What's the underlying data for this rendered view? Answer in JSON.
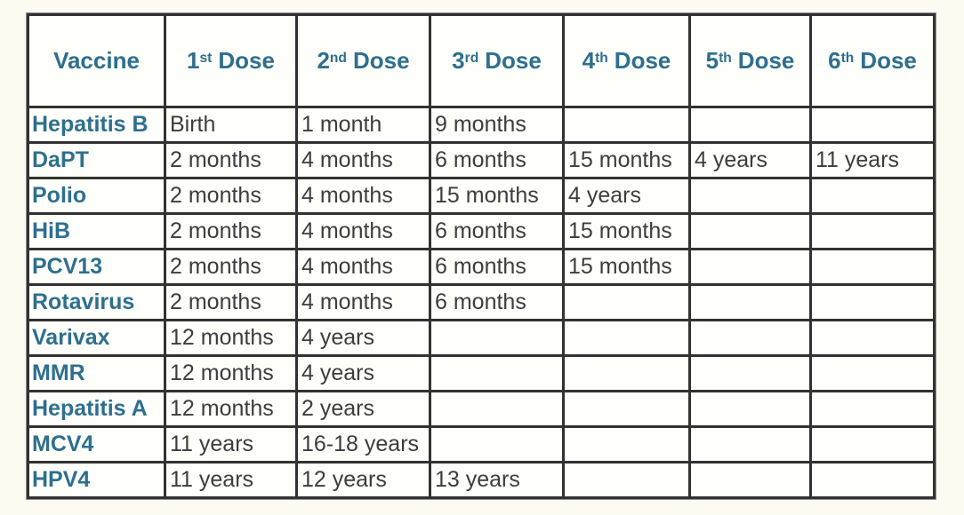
{
  "colors": {
    "page_background": "#fdfbf1",
    "cell_background": "#fefefa",
    "border": "#323232",
    "outer_bevel": "#8f8f8f",
    "heading_text": "#2e6f8e",
    "body_text": "#3d3d3d"
  },
  "table": {
    "columns": [
      {
        "label": "Vaccine"
      },
      {
        "num": "1",
        "sup": "st",
        "label": "Dose"
      },
      {
        "num": "2",
        "sup": "nd",
        "label": "Dose"
      },
      {
        "num": "3",
        "sup": "rd",
        "label": "Dose"
      },
      {
        "num": "4",
        "sup": "th",
        "label": "Dose"
      },
      {
        "num": "5",
        "sup": "th",
        "label": "Dose"
      },
      {
        "num": "6",
        "sup": "th",
        "label": "Dose"
      }
    ],
    "rows": [
      {
        "vaccine": "Hepatitis B",
        "doses": [
          "Birth",
          "1 month",
          "9 months",
          "",
          "",
          ""
        ]
      },
      {
        "vaccine": "DaPT",
        "doses": [
          "2 months",
          "4 months",
          "6 months",
          "15 months",
          "4 years",
          "11 years"
        ]
      },
      {
        "vaccine": "Polio",
        "doses": [
          "2 months",
          "4 months",
          "15 months",
          "4 years",
          "",
          ""
        ]
      },
      {
        "vaccine": "HiB",
        "doses": [
          "2 months",
          "4 months",
          "6 months",
          "15 months",
          "",
          ""
        ]
      },
      {
        "vaccine": "PCV13",
        "doses": [
          "2 months",
          "4 months",
          "6 months",
          "15 months",
          "",
          ""
        ]
      },
      {
        "vaccine": "Rotavirus",
        "doses": [
          "2 months",
          "4 months",
          "6 months",
          "",
          "",
          ""
        ]
      },
      {
        "vaccine": "Varivax",
        "doses": [
          "12 months",
          "4 years",
          "",
          "",
          "",
          ""
        ]
      },
      {
        "vaccine": "MMR",
        "doses": [
          "12 months",
          "4 years",
          "",
          "",
          "",
          ""
        ]
      },
      {
        "vaccine": "Hepatitis A",
        "doses": [
          "12 months",
          "2 years",
          "",
          "",
          "",
          ""
        ]
      },
      {
        "vaccine": "MCV4",
        "doses": [
          "11 years",
          "16-18 years",
          "",
          "",
          "",
          ""
        ]
      },
      {
        "vaccine": "HPV4",
        "doses": [
          "11 years",
          "12 years",
          "13 years",
          "",
          "",
          ""
        ]
      }
    ]
  }
}
